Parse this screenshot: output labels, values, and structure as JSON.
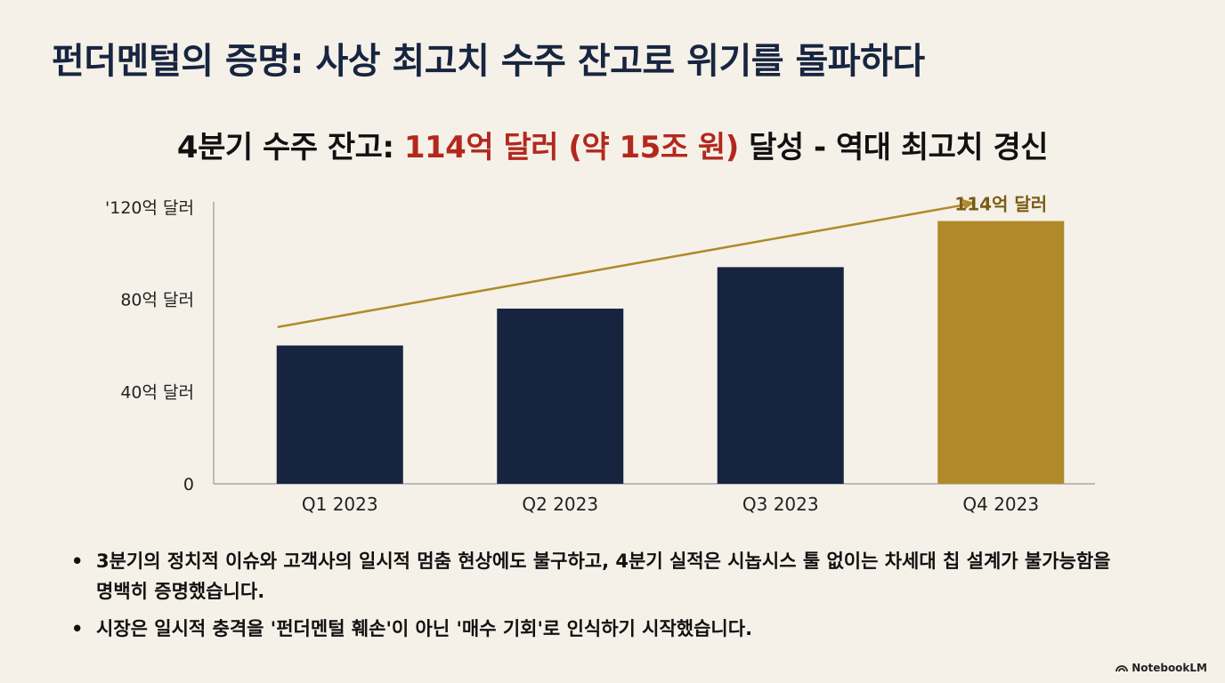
{
  "title": "펀더멘털의 증명: 사상 최고치 수주 잔고로 위기를 돌파하다",
  "subtitle": {
    "prefix": "4분기 수주 잔고: ",
    "highlight": "114억 달러 (약 15조 원)",
    "suffix": " 달성 - 역대 최고치 경신"
  },
  "chart_data": {
    "type": "bar",
    "categories": [
      "Q1 2023",
      "Q2 2023",
      "Q3 2023",
      "Q4 2023"
    ],
    "values": [
      60,
      76,
      94,
      114
    ],
    "ylim": [
      0,
      120
    ],
    "y_ticks": [
      {
        "value": 0,
        "label": "0"
      },
      {
        "value": 40,
        "label": "40억 달러"
      },
      {
        "value": 80,
        "label": "80억 달러"
      },
      {
        "value": 120,
        "label": "'120억 달러"
      }
    ],
    "bar_colors": [
      "#17243f",
      "#17243f",
      "#17243f",
      "#b08a2a"
    ],
    "annotation": {
      "category": "Q4 2023",
      "label": "114억 달러",
      "color": "#7a5d14"
    },
    "trend_line": {
      "from_value": 68,
      "to_value": 122,
      "color": "#b08a2a"
    },
    "title": "",
    "xlabel": "",
    "ylabel": ""
  },
  "bullets": [
    "3분기의 정치적 이슈와 고객사의 일시적 멈춤 현상에도 불구하고, 4분기 실적은 시놉시스 툴 없이는 차세대 칩 설계가 불가능함을 명백히 증명했습니다.",
    "시장은 일시적 충격을 '펀더멘털 훼손'이 아닌 '매수 기회'로 인식하기 시작했습니다."
  ],
  "bullet_marker": "•",
  "watermark": "NotebookLM"
}
